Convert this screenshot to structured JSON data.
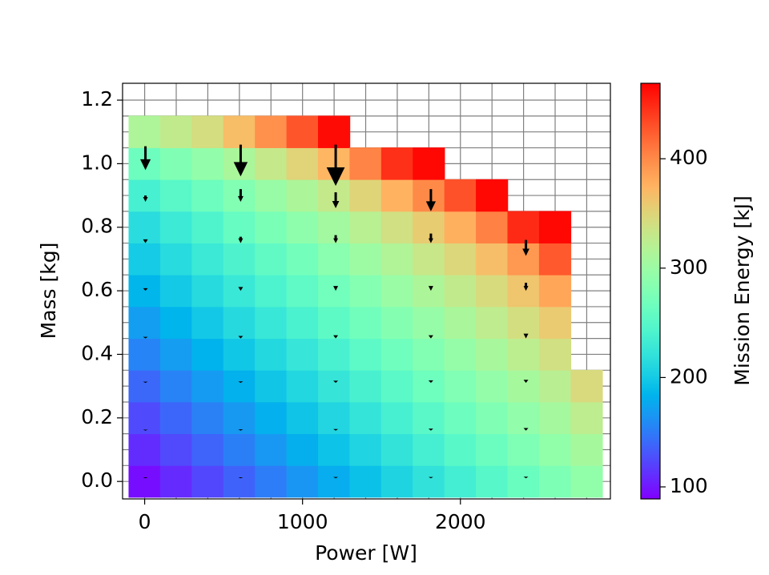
{
  "chart_data": {
    "type": "heatmap",
    "xlabel": "Power [W]",
    "ylabel": "Mass [kg]",
    "x": [
      0,
      200,
      400,
      600,
      800,
      1000,
      1200,
      1400,
      1600,
      1800,
      2000,
      2200,
      2400,
      2600,
      2800
    ],
    "y": [
      0,
      0.1,
      0.2,
      0.3,
      0.4,
      0.5,
      0.6,
      0.7,
      0.8,
      0.9,
      1.0,
      1.1
    ],
    "values": [
      [
        95,
        110,
        125,
        140,
        155,
        170,
        185,
        200,
        215,
        237,
        265,
        314
      ],
      [
        109,
        124,
        139,
        154,
        169,
        184,
        199,
        214,
        229,
        251,
        279,
        328
      ],
      [
        123,
        138,
        153,
        168,
        183,
        198,
        213,
        228,
        243,
        265,
        293,
        342
      ],
      [
        137,
        152,
        167,
        182,
        197,
        212,
        227,
        242,
        260,
        281,
        311,
        368
      ],
      [
        151,
        166,
        181,
        196,
        211,
        226,
        241,
        256,
        275,
        297,
        331,
        396
      ],
      [
        165,
        180,
        195,
        210,
        225,
        240,
        255,
        270,
        290,
        313,
        351,
        428
      ],
      [
        179,
        194,
        209,
        224,
        239,
        254,
        269,
        286,
        305,
        330,
        373,
        464
      ],
      [
        193,
        208,
        223,
        238,
        253,
        268,
        283,
        301,
        321,
        350,
        403,
        null
      ],
      [
        207,
        222,
        237,
        252,
        267,
        282,
        299,
        316,
        339,
        375,
        446,
        null
      ],
      [
        221,
        236,
        251,
        266,
        281,
        296,
        313,
        332,
        357,
        400,
        465,
        null
      ],
      [
        235,
        250,
        265,
        280,
        295,
        311,
        328,
        348,
        377,
        430,
        null,
        null
      ],
      [
        249,
        264,
        279,
        294,
        309,
        326,
        344,
        367,
        405,
        465,
        null,
        null
      ],
      [
        263,
        278,
        293,
        308,
        324,
        341,
        362,
        392,
        449,
        null,
        null,
        null
      ],
      [
        277,
        292,
        307,
        322,
        339,
        358,
        383,
        426,
        465,
        null,
        null,
        null
      ],
      [
        292,
        308,
        325,
        345,
        null,
        null,
        null,
        null,
        null,
        null,
        null,
        null
      ]
    ],
    "colormap": "rainbow",
    "clim": [
      89,
      469
    ],
    "xlim": [
      -140,
      2950
    ],
    "ylim": [
      -0.055,
      1.253
    ],
    "xticks": [
      0,
      1000,
      2000
    ],
    "yticks": [
      {
        "value": 0,
        "label": "0.0"
      },
      0.2,
      0.4,
      0.6,
      0.8,
      {
        "value": 1,
        "label": "1.0"
      },
      1.2
    ],
    "xgrid": [
      0,
      200,
      400,
      600,
      800,
      1000,
      1200,
      1400,
      1600,
      1800,
      2000,
      2200,
      2400,
      2600,
      2800
    ],
    "ygrid": [
      0,
      0.05,
      0.1,
      0.15,
      0.2,
      0.25,
      0.3,
      0.35,
      0.4,
      0.45,
      0.5,
      0.55,
      0.6,
      0.65,
      0.7,
      0.75,
      0.8,
      0.85,
      0.9,
      0.95,
      1.0,
      1.05,
      1.1,
      1.15,
      1.2
    ],
    "grid": true,
    "quiver": {
      "color": "#000000",
      "x": [
        5,
        5,
        5,
        5,
        5,
        5,
        5,
        5,
        608,
        608,
        608,
        608,
        608,
        608,
        608,
        608,
        1210,
        1210,
        1210,
        1210,
        1210,
        1210,
        1210,
        1210,
        1813,
        1813,
        1813,
        1813,
        1813,
        1813,
        1813,
        2415,
        2415,
        2415,
        2415,
        2415,
        2415
      ],
      "y": [
        1.055,
        0.9,
        0.762,
        0.608,
        0.455,
        0.314,
        0.163,
        0.013,
        1.06,
        0.92,
        0.77,
        0.612,
        0.458,
        0.315,
        0.164,
        0.013,
        1.06,
        0.91,
        0.775,
        0.615,
        0.46,
        0.317,
        0.165,
        0.014,
        0.92,
        0.78,
        0.615,
        0.46,
        0.318,
        0.166,
        0.014,
        0.76,
        0.625,
        0.465,
        0.32,
        0.168,
        0.015
      ],
      "v": [
        -0.075,
        -0.02,
        -0.012,
        -0.008,
        -0.005,
        -0.004,
        -0.003,
        -0.003,
        -0.1,
        -0.04,
        -0.02,
        -0.012,
        -0.008,
        -0.005,
        -0.004,
        -0.003,
        -0.13,
        -0.05,
        -0.025,
        -0.015,
        -0.01,
        -0.007,
        -0.005,
        -0.004,
        -0.07,
        -0.03,
        -0.015,
        -0.01,
        -0.008,
        -0.006,
        -0.004,
        -0.05,
        -0.025,
        -0.015,
        -0.01,
        -0.008,
        -0.005
      ]
    },
    "colorbar": {
      "label": "Mission Energy [kJ]",
      "ticks": [
        100,
        200,
        300,
        400
      ]
    }
  }
}
